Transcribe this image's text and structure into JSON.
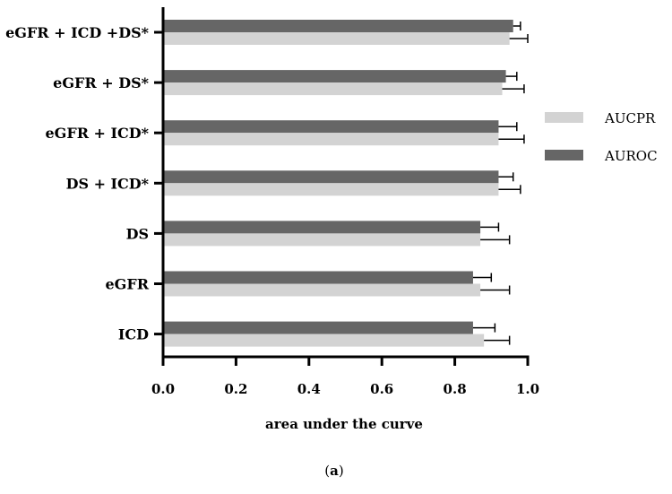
{
  "chart_data": {
    "type": "bar",
    "orientation": "horizontal",
    "categories": [
      "eGFR + ICD +DS*",
      "eGFR + DS*",
      "eGFR + ICD*",
      "DS + ICD*",
      "DS",
      "eGFR",
      "ICD"
    ],
    "series": [
      {
        "name": "AUROC",
        "color": "#666666",
        "values": [
          0.96,
          0.94,
          0.92,
          0.92,
          0.87,
          0.85,
          0.85
        ],
        "errors": [
          0.02,
          0.03,
          0.05,
          0.04,
          0.05,
          0.05,
          0.06
        ]
      },
      {
        "name": "AUCPR",
        "color": "#d3d3d3",
        "values": [
          0.95,
          0.93,
          0.92,
          0.92,
          0.87,
          0.87,
          0.88
        ],
        "errors": [
          0.05,
          0.06,
          0.07,
          0.06,
          0.08,
          0.08,
          0.07
        ]
      }
    ],
    "xlabel": "area under the curve",
    "ylabel": "",
    "xlim": [
      0.0,
      1.0
    ],
    "xticks": [
      "0.0",
      "0.2",
      "0.4",
      "0.6",
      "0.8",
      "1.0"
    ],
    "legend": {
      "placement": "right",
      "order": [
        "AUCPR",
        "AUROC"
      ]
    },
    "grid": false
  },
  "caption": {
    "open": "(",
    "letter": "a",
    "close": ")"
  }
}
